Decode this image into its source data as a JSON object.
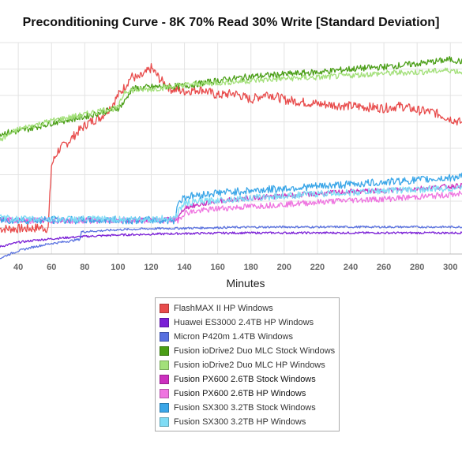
{
  "chart_data": {
    "type": "line",
    "title": "Preconditioning Curve - 8K 70% Read 30% Write [Standard Deviation]",
    "xlabel": "Minutes",
    "ylabel": "",
    "xlim": [
      29,
      307
    ],
    "ylim": [
      0,
      10
    ],
    "x_ticks": [
      40,
      60,
      80,
      100,
      120,
      140,
      160,
      180,
      200,
      220,
      240,
      260,
      280,
      300
    ],
    "grid": true,
    "legend_position": "bottom-center",
    "series": [
      {
        "name": "FlashMAX II HP Windows",
        "color": "#e84c4c",
        "x": [
          29,
          45,
          54,
          58,
          60,
          64,
          70,
          76,
          82,
          90,
          96,
          100,
          104,
          108,
          112,
          116,
          120,
          126,
          132,
          140,
          150,
          160,
          170,
          180,
          190,
          200,
          220,
          240,
          260,
          270,
          280,
          290,
          300,
          307
        ],
        "y": [
          1.2,
          1.2,
          1.25,
          1.2,
          4.2,
          4.9,
          5.3,
          5.8,
          6.2,
          6.5,
          7.0,
          7.5,
          7.9,
          8.4,
          8.3,
          8.5,
          8.8,
          8.2,
          7.8,
          7.7,
          7.8,
          7.5,
          7.6,
          7.3,
          7.6,
          7.3,
          7.1,
          7.0,
          6.9,
          7.0,
          6.8,
          6.7,
          6.4,
          6.2
        ]
      },
      {
        "name": "Huawei ES3000 2.4TB HP Windows",
        "color": "#7a1fd6",
        "x": [
          29,
          40,
          50,
          60,
          70,
          80,
          100,
          120,
          140,
          160,
          180,
          200,
          220,
          240,
          260,
          280,
          300,
          307
        ],
        "y": [
          0.35,
          0.55,
          0.65,
          0.72,
          0.78,
          0.83,
          0.9,
          0.94,
          0.97,
          0.99,
          1.0,
          1.0,
          1.0,
          1.0,
          1.0,
          1.0,
          1.0,
          1.0
        ]
      },
      {
        "name": "Micron P420m 1.4TB Windows",
        "color": "#5870e0",
        "x": [
          29,
          35,
          40,
          50,
          60,
          70,
          77,
          78,
          90,
          100,
          120,
          140,
          160,
          180,
          200,
          220,
          240,
          260,
          280,
          300,
          307
        ],
        "y": [
          -0.2,
          0.0,
          0.15,
          0.35,
          0.5,
          0.6,
          0.7,
          1.05,
          1.1,
          1.15,
          1.2,
          1.22,
          1.25,
          1.27,
          1.28,
          1.28,
          1.28,
          1.28,
          1.28,
          1.28,
          1.28
        ]
      },
      {
        "name": "Fusion ioDrive2 Duo MLC Stock Windows",
        "color": "#4a9e16",
        "x": [
          29,
          40,
          60,
          80,
          90,
          100,
          104,
          108,
          120,
          140,
          160,
          180,
          200,
          220,
          240,
          260,
          280,
          290,
          300,
          307
        ],
        "y": [
          5.7,
          5.8,
          6.2,
          6.5,
          6.7,
          6.9,
          7.2,
          7.8,
          7.9,
          7.95,
          8.2,
          8.4,
          8.5,
          8.6,
          8.75,
          8.85,
          9.0,
          9.1,
          9.2,
          9.1
        ]
      },
      {
        "name": "Fusion ioDrive2 Duo MLC HP Windows",
        "color": "#a3e07a",
        "x": [
          29,
          40,
          60,
          80,
          90,
          100,
          104,
          110,
          120,
          140,
          160,
          180,
          200,
          220,
          240,
          260,
          280,
          300,
          307
        ],
        "y": [
          5.4,
          5.9,
          6.3,
          6.6,
          6.8,
          6.9,
          7.7,
          7.75,
          7.8,
          8.0,
          8.1,
          8.2,
          8.3,
          8.35,
          8.45,
          8.55,
          8.6,
          8.7,
          8.6
        ]
      },
      {
        "name": "Fusion PX600 2.6TB Stock Windows",
        "color": "#cc2fbf",
        "x": [
          29,
          40,
          60,
          80,
          100,
          120,
          136,
          140,
          150,
          160,
          180,
          200,
          220,
          240,
          260,
          280,
          300,
          307
        ],
        "y": [
          1.65,
          1.6,
          1.6,
          1.6,
          1.6,
          1.6,
          1.65,
          2.2,
          2.35,
          2.5,
          2.65,
          2.75,
          2.85,
          2.95,
          3.0,
          3.1,
          3.2,
          3.25
        ]
      },
      {
        "name": "Fusion PX600 2.6TB HP Windows",
        "color": "#ef74e0",
        "x": [
          29,
          40,
          60,
          80,
          100,
          120,
          136,
          140,
          150,
          160,
          180,
          200,
          220,
          240,
          260,
          280,
          300,
          307
        ],
        "y": [
          1.6,
          1.58,
          1.58,
          1.58,
          1.58,
          1.58,
          1.6,
          1.95,
          2.05,
          2.15,
          2.25,
          2.35,
          2.45,
          2.55,
          2.6,
          2.7,
          2.8,
          2.85
        ]
      },
      {
        "name": "Fusion SX300 3.2TB Stock Windows",
        "color": "#3aa6e8",
        "x": [
          29,
          40,
          60,
          80,
          100,
          120,
          134,
          136,
          140,
          160,
          180,
          200,
          220,
          240,
          260,
          280,
          300,
          307
        ],
        "y": [
          1.6,
          1.6,
          1.6,
          1.6,
          1.6,
          1.6,
          1.6,
          2.4,
          2.7,
          2.9,
          3.0,
          3.1,
          3.2,
          3.3,
          3.4,
          3.5,
          3.6,
          3.7
        ]
      },
      {
        "name": "Fusion SX300 3.2TB HP Windows",
        "color": "#7fdcf5",
        "x": [
          29,
          40,
          60,
          80,
          100,
          120,
          134,
          138,
          140,
          160,
          180,
          200,
          220,
          240,
          260,
          280,
          300,
          307
        ],
        "y": [
          1.7,
          1.65,
          1.65,
          1.65,
          1.65,
          1.65,
          1.7,
          2.2,
          2.4,
          2.55,
          2.65,
          2.75,
          2.85,
          2.9,
          3.0,
          3.05,
          3.1,
          3.15
        ]
      }
    ]
  }
}
